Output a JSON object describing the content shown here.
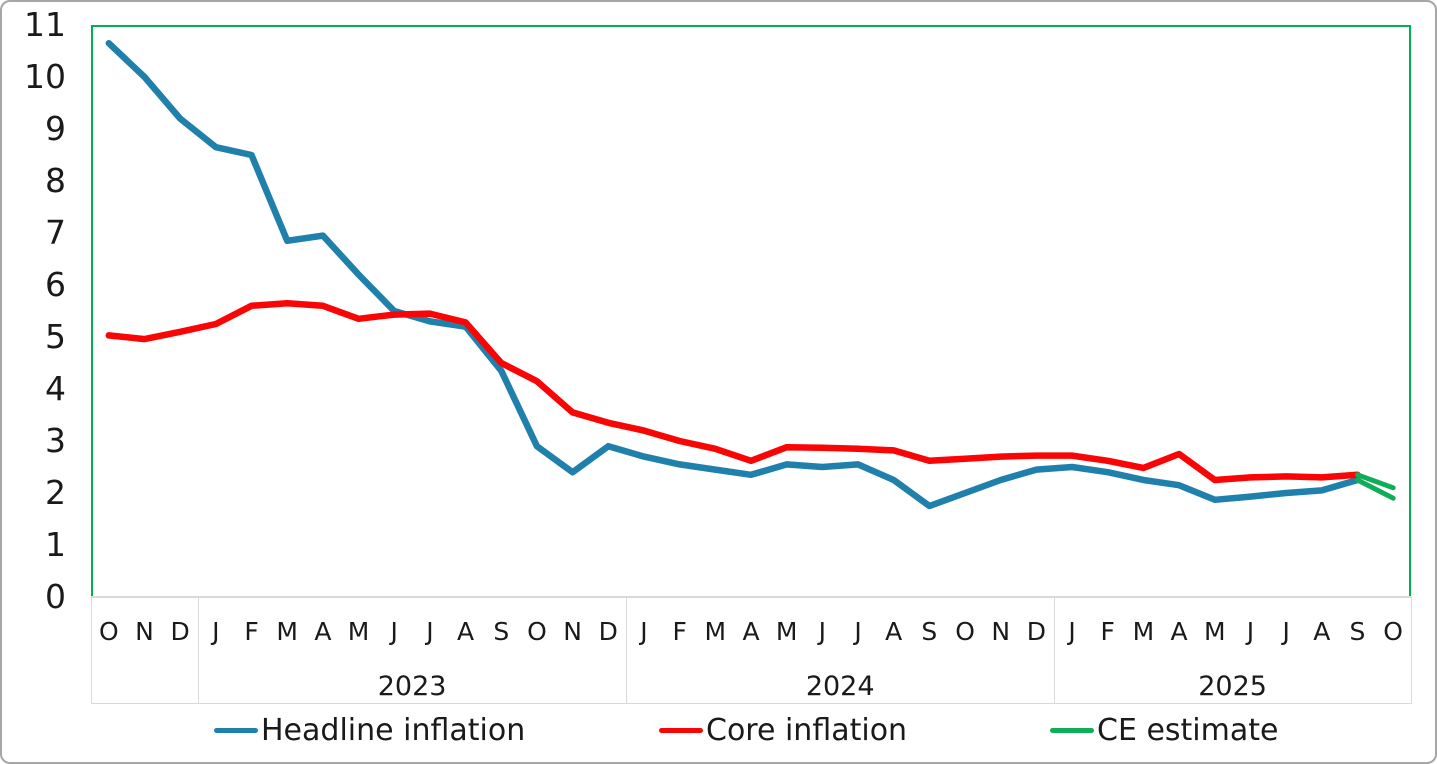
{
  "chart_data": {
    "type": "line",
    "title": "",
    "xlabel": "",
    "ylabel": "",
    "ylim": [
      0,
      11
    ],
    "yticks": [
      0,
      1,
      2,
      3,
      4,
      5,
      6,
      7,
      8,
      9,
      10,
      11
    ],
    "grid": false,
    "legend_position": "bottom",
    "plot_border_color": "#00b052",
    "axis_line_color": "#d9d9d9",
    "x_months": [
      "O",
      "N",
      "D",
      "J",
      "F",
      "M",
      "A",
      "M",
      "J",
      "J",
      "A",
      "S",
      "O",
      "N",
      "D",
      "J",
      "F",
      "M",
      "A",
      "M",
      "J",
      "J",
      "A",
      "S",
      "O",
      "N",
      "D",
      "J",
      "F",
      "M",
      "A",
      "M",
      "J",
      "J",
      "A",
      "S",
      "O"
    ],
    "x_year_groups": [
      {
        "label": "",
        "start": 0,
        "count": 3
      },
      {
        "label": "2023",
        "start": 3,
        "count": 12
      },
      {
        "label": "2024",
        "start": 15,
        "count": 12
      },
      {
        "label": "2025",
        "start": 27,
        "count": 10
      }
    ],
    "series": [
      {
        "name": "Headline inflation",
        "color": "#1f80ac",
        "stroke_width": 6.5,
        "values": [
          10.65,
          10.0,
          9.2,
          8.65,
          8.5,
          6.85,
          6.95,
          6.2,
          5.5,
          5.3,
          5.2,
          4.35,
          2.9,
          2.4,
          2.9,
          2.7,
          2.55,
          2.45,
          2.35,
          2.55,
          2.5,
          2.55,
          2.25,
          1.75,
          2.0,
          2.25,
          2.45,
          2.5,
          2.4,
          2.25,
          2.15,
          1.87,
          1.93,
          2.0,
          2.05,
          2.25,
          null
        ]
      },
      {
        "name": "Core inflation",
        "color": "#fa0505",
        "stroke_width": 6.5,
        "values": [
          5.03,
          4.96,
          5.1,
          5.25,
          5.6,
          5.65,
          5.6,
          5.35,
          5.43,
          5.45,
          5.28,
          4.5,
          4.15,
          3.55,
          3.35,
          3.2,
          3.0,
          2.85,
          2.62,
          2.88,
          2.87,
          2.85,
          2.82,
          2.62,
          2.66,
          2.7,
          2.72,
          2.72,
          2.62,
          2.48,
          2.75,
          2.25,
          2.3,
          2.32,
          2.3,
          2.35,
          null
        ]
      },
      {
        "name": "CE estimate",
        "color": "#0fad57",
        "stroke_width": 5,
        "segments": [
          [
            [
              35,
              2.35
            ],
            [
              36,
              2.1
            ]
          ],
          [
            [
              35,
              2.25
            ],
            [
              36,
              1.9
            ]
          ]
        ]
      }
    ]
  },
  "legend": {
    "headline_label": "Headline inflation",
    "core_label": "Core inflation",
    "ce_label": "CE estimate"
  }
}
